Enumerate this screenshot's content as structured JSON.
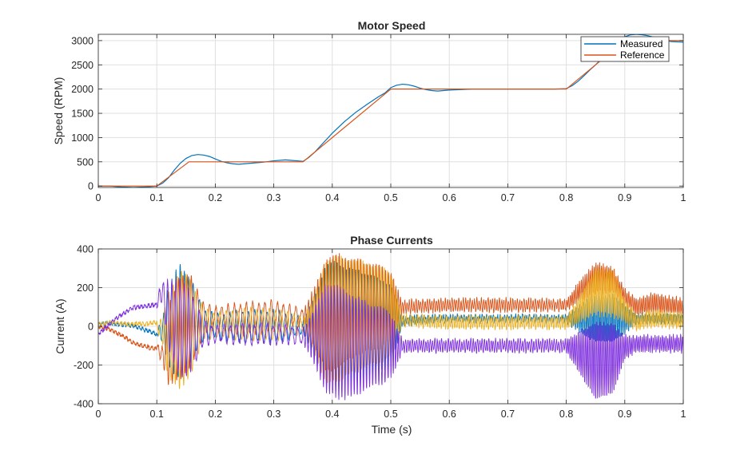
{
  "chart_data": [
    {
      "type": "line",
      "title": "Motor Speed",
      "xlabel": "",
      "ylabel": "Speed (RPM)",
      "xlim": [
        0,
        1
      ],
      "ylim": [
        -30,
        3130
      ],
      "xticks": [
        0,
        0.1,
        0.2,
        0.3,
        0.4,
        0.5,
        0.6,
        0.7,
        0.8,
        0.9,
        1
      ],
      "xtick_labels": [
        "0",
        "0.1",
        "0.2",
        "0.3",
        "0.4",
        "0.5",
        "0.6",
        "0.7",
        "0.8",
        "0.9",
        "1"
      ],
      "yticks": [
        0,
        500,
        1000,
        1500,
        2000,
        2500,
        3000
      ],
      "ytick_labels": [
        "0",
        "500",
        "1000",
        "1500",
        "2000",
        "2500",
        "3000"
      ],
      "grid": true,
      "legend_position": "top-right",
      "series": [
        {
          "name": "Measured",
          "color": "#0072BD",
          "x": [
            0,
            0.02,
            0.04,
            0.06,
            0.08,
            0.1,
            0.11,
            0.12,
            0.13,
            0.14,
            0.15,
            0.16,
            0.17,
            0.18,
            0.19,
            0.2,
            0.21,
            0.22,
            0.23,
            0.24,
            0.25,
            0.26,
            0.28,
            0.3,
            0.32,
            0.33,
            0.34,
            0.35,
            0.36,
            0.37,
            0.38,
            0.39,
            0.4,
            0.42,
            0.44,
            0.46,
            0.48,
            0.49,
            0.5,
            0.51,
            0.52,
            0.53,
            0.54,
            0.55,
            0.56,
            0.57,
            0.58,
            0.59,
            0.6,
            0.62,
            0.64,
            0.66,
            0.68,
            0.7,
            0.72,
            0.74,
            0.76,
            0.78,
            0.8,
            0.81,
            0.82,
            0.83,
            0.84,
            0.85,
            0.86,
            0.87,
            0.88,
            0.89,
            0.9,
            0.91,
            0.92,
            0.93,
            0.94,
            0.95,
            0.96,
            0.97,
            0.98,
            1.0
          ],
          "y": [
            0,
            0,
            -20,
            -30,
            -20,
            0,
            60,
            170,
            330,
            470,
            570,
            630,
            650,
            640,
            610,
            560,
            510,
            480,
            460,
            450,
            460,
            470,
            490,
            520,
            540,
            530,
            520,
            510,
            590,
            700,
            830,
            960,
            1090,
            1320,
            1520,
            1690,
            1850,
            1920,
            2030,
            2080,
            2100,
            2090,
            2060,
            2020,
            1990,
            1970,
            1960,
            1970,
            1980,
            1990,
            2000,
            2000,
            2000,
            2000,
            2000,
            2000,
            2000,
            2000,
            2010,
            2070,
            2160,
            2270,
            2390,
            2500,
            2620,
            2740,
            2860,
            2980,
            3080,
            3120,
            3130,
            3120,
            3100,
            3070,
            3030,
            3000,
            2980,
            2970
          ]
        },
        {
          "name": "Reference",
          "color": "#D95319",
          "x": [
            0,
            0.1,
            0.155,
            0.35,
            0.5,
            0.8,
            0.9,
            1.0
          ],
          "y": [
            0,
            0,
            500,
            500,
            2000,
            2000,
            3000,
            3000
          ]
        }
      ]
    },
    {
      "type": "line",
      "title": "Phase Currents",
      "xlabel": "Time (s)",
      "ylabel": "Current (A)",
      "xlim": [
        0,
        1
      ],
      "ylim": [
        -400,
        400
      ],
      "xticks": [
        0,
        0.1,
        0.2,
        0.3,
        0.4,
        0.5,
        0.6,
        0.7,
        0.8,
        0.9,
        1
      ],
      "xtick_labels": [
        "0",
        "0.1",
        "0.2",
        "0.3",
        "0.4",
        "0.5",
        "0.6",
        "0.7",
        "0.8",
        "0.9",
        "1"
      ],
      "yticks": [
        -400,
        -200,
        0,
        200,
        400
      ],
      "ytick_labels": [
        "-400",
        "-200",
        "0",
        "200",
        "400"
      ],
      "grid": true,
      "series": [
        {
          "color": "#0072BD",
          "x": [
            0,
            0.02,
            0.04,
            0.06,
            0.08,
            0.1,
            0.11,
            0.12,
            0.14,
            0.16,
            0.18,
            0.2,
            0.25,
            0.3,
            0.35,
            0.37,
            0.39,
            0.41,
            0.43,
            0.45,
            0.47,
            0.49,
            0.5,
            0.52,
            0.6,
            0.7,
            0.8,
            0.82,
            0.85,
            0.88,
            0.9,
            0.92,
            0.95,
            1.0
          ],
          "center": [
            10,
            10,
            0,
            -10,
            -20,
            -30,
            -20,
            0,
            20,
            30,
            10,
            0,
            0,
            0,
            0,
            0,
            0,
            0,
            0,
            0,
            0,
            0,
            0,
            30,
            40,
            40,
            40,
            40,
            40,
            40,
            40,
            40,
            40,
            40
          ],
          "amplitude": [
            10,
            10,
            10,
            15,
            15,
            20,
            60,
            200,
            310,
            200,
            80,
            60,
            80,
            80,
            40,
            150,
            330,
            330,
            300,
            280,
            260,
            230,
            220,
            20,
            15,
            15,
            15,
            60,
            120,
            120,
            80,
            20,
            20,
            20
          ]
        },
        {
          "color": "#D95319",
          "x": [
            0,
            0.02,
            0.04,
            0.06,
            0.08,
            0.1,
            0.11,
            0.12,
            0.14,
            0.16,
            0.18,
            0.2,
            0.25,
            0.3,
            0.35,
            0.37,
            0.39,
            0.41,
            0.43,
            0.45,
            0.47,
            0.49,
            0.5,
            0.52,
            0.6,
            0.7,
            0.8,
            0.82,
            0.85,
            0.88,
            0.9,
            0.92,
            0.95,
            1.0
          ],
          "center": [
            -10,
            -20,
            -40,
            -70,
            -90,
            -110,
            -150,
            -100,
            0,
            30,
            40,
            40,
            40,
            50,
            50,
            50,
            60,
            80,
            90,
            100,
            100,
            100,
            100,
            100,
            110,
            110,
            110,
            170,
            250,
            240,
            150,
            100,
            120,
            100
          ],
          "amplitude": [
            10,
            10,
            15,
            15,
            15,
            20,
            40,
            200,
            280,
            230,
            80,
            60,
            80,
            80,
            40,
            150,
            300,
            290,
            260,
            240,
            220,
            200,
            180,
            30,
            30,
            30,
            25,
            50,
            80,
            60,
            40,
            40,
            50,
            40
          ]
        },
        {
          "color": "#EDB120",
          "x": [
            0,
            0.02,
            0.04,
            0.06,
            0.08,
            0.1,
            0.11,
            0.12,
            0.14,
            0.16,
            0.18,
            0.2,
            0.25,
            0.3,
            0.35,
            0.37,
            0.39,
            0.41,
            0.43,
            0.45,
            0.47,
            0.49,
            0.5,
            0.52,
            0.6,
            0.7,
            0.8,
            0.82,
            0.85,
            0.88,
            0.9,
            0.92,
            0.95,
            1.0
          ],
          "center": [
            20,
            30,
            20,
            10,
            0,
            0,
            -20,
            -50,
            -20,
            0,
            10,
            10,
            10,
            10,
            10,
            10,
            20,
            40,
            50,
            60,
            60,
            60,
            60,
            30,
            20,
            20,
            20,
            80,
            180,
            170,
            80,
            20,
            40,
            30
          ],
          "amplitude": [
            10,
            10,
            10,
            15,
            15,
            20,
            60,
            220,
            320,
            230,
            80,
            60,
            80,
            80,
            40,
            150,
            330,
            320,
            300,
            280,
            260,
            240,
            220,
            25,
            30,
            30,
            30,
            60,
            120,
            120,
            60,
            40,
            40,
            40
          ]
        },
        {
          "color": "#7E2FDE",
          "x": [
            0,
            0.02,
            0.04,
            0.06,
            0.08,
            0.1,
            0.11,
            0.12,
            0.14,
            0.16,
            0.18,
            0.2,
            0.25,
            0.3,
            0.35,
            0.37,
            0.39,
            0.41,
            0.43,
            0.45,
            0.47,
            0.49,
            0.5,
            0.52,
            0.6,
            0.7,
            0.8,
            0.82,
            0.85,
            0.88,
            0.9,
            0.92,
            0.95,
            1.0
          ],
          "center": [
            -40,
            0,
            40,
            80,
            100,
            130,
            180,
            60,
            -10,
            -30,
            -40,
            -40,
            -40,
            -40,
            -50,
            -50,
            -60,
            -80,
            -100,
            -100,
            -100,
            -100,
            -100,
            -100,
            -100,
            -100,
            -100,
            -130,
            -180,
            -170,
            -110,
            -90,
            -90,
            -90
          ],
          "amplitude": [
            20,
            20,
            20,
            20,
            25,
            30,
            40,
            180,
            260,
            200,
            60,
            40,
            50,
            50,
            40,
            150,
            290,
            290,
            270,
            240,
            210,
            190,
            170,
            30,
            30,
            30,
            30,
            100,
            200,
            180,
            60,
            40,
            40,
            40
          ]
        }
      ]
    }
  ]
}
